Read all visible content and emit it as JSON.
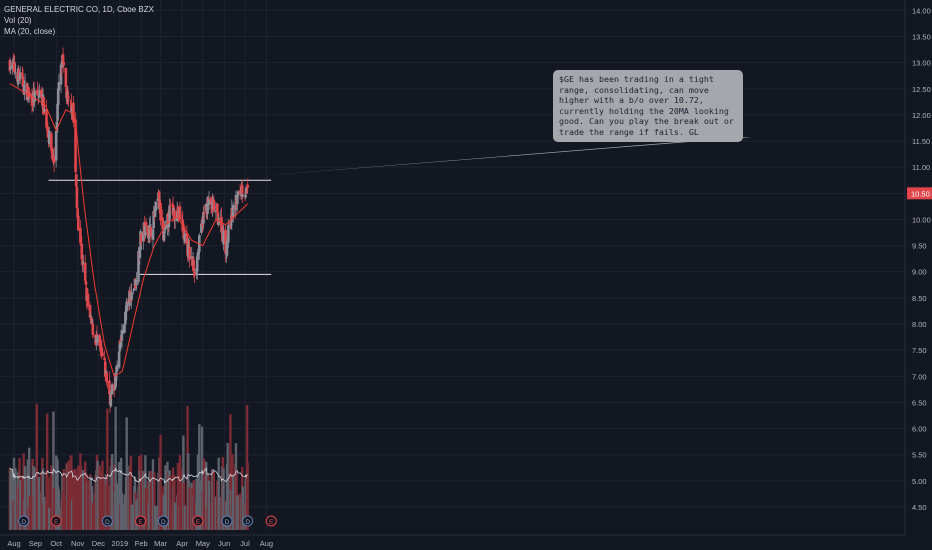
{
  "legend": {
    "title": "GENERAL ELECTRIC CO, 1D, Cboe BZX",
    "vol": "Vol (20)",
    "ma": "MA (20, close)"
  },
  "note": "$GE has been trading in a tight range, consolidating, can move higher with a b/o over 10.72, currently holding the 20MA looking good. Can you play the break out or trade the range if fails. GL",
  "colors": {
    "up": "#8c8f99",
    "down": "#e0464b",
    "vol_up": "#5d616b",
    "vol_down": "#7a2b33",
    "ma": "#f23b2f",
    "grid": "#1f2330",
    "line": "#e4e6eb"
  },
  "chart_data": {
    "type": "candlestick",
    "title": "GENERAL ELECTRIC CO, 1D, Cboe BZX",
    "price_axis": {
      "ticks": [
        "4.50",
        "5.00",
        "5.50",
        "6.00",
        "6.50",
        "7.00",
        "7.50",
        "8.00",
        "8.50",
        "9.00",
        "9.50",
        "10.00",
        "10.50",
        "11.00",
        "11.50",
        "12.00",
        "12.50",
        "13.00",
        "13.50",
        "14.00"
      ],
      "last_price": "10.50"
    },
    "time_axis": [
      "Aug",
      "Sep",
      "Oct",
      "Nov",
      "Dec",
      "2019",
      "Feb",
      "Mar",
      "Apr",
      "May",
      "Jun",
      "Jul",
      "Aug"
    ],
    "series": [
      {
        "name": "Vol (20)",
        "type": "bar"
      },
      {
        "name": "MA (20, close)",
        "type": "line"
      }
    ],
    "close_path": [
      [
        "2018-07-26",
        13.0
      ],
      [
        "2018-08-10",
        12.7
      ],
      [
        "2018-08-25",
        12.3
      ],
      [
        "2018-09-10",
        12.4
      ],
      [
        "2018-09-20",
        11.6
      ],
      [
        "2018-09-28",
        11.1
      ],
      [
        "2018-10-05",
        12.6
      ],
      [
        "2018-10-10",
        13.0
      ],
      [
        "2018-10-18",
        12.2
      ],
      [
        "2018-10-25",
        12.2
      ],
      [
        "2018-10-31",
        10.2
      ],
      [
        "2018-11-08",
        9.2
      ],
      [
        "2018-11-18",
        8.1
      ],
      [
        "2018-11-28",
        7.7
      ],
      [
        "2018-12-08",
        7.3
      ],
      [
        "2018-12-18",
        6.6
      ],
      [
        "2018-12-24",
        6.8
      ],
      [
        "2019-01-02",
        7.6
      ],
      [
        "2019-01-12",
        8.4
      ],
      [
        "2019-01-24",
        8.8
      ],
      [
        "2019-01-30",
        9.6
      ],
      [
        "2019-02-05",
        9.8
      ],
      [
        "2019-02-15",
        9.8
      ],
      [
        "2019-02-26",
        10.4
      ],
      [
        "2019-03-05",
        9.6
      ],
      [
        "2019-03-15",
        10.2
      ],
      [
        "2019-03-28",
        10.1
      ],
      [
        "2019-04-10",
        9.4
      ],
      [
        "2019-04-20",
        9.0
      ],
      [
        "2019-05-01",
        10.0
      ],
      [
        "2019-05-08",
        10.3
      ],
      [
        "2019-05-18",
        10.2
      ],
      [
        "2019-05-28",
        9.9
      ],
      [
        "2019-06-03",
        9.4
      ],
      [
        "2019-06-10",
        10.0
      ],
      [
        "2019-06-20",
        10.4
      ],
      [
        "2019-06-26",
        10.6
      ],
      [
        "2019-07-05",
        10.5
      ]
    ],
    "ma_path": [
      [
        "2018-07-26",
        12.6
      ],
      [
        "2018-08-20",
        12.4
      ],
      [
        "2018-09-15",
        12.2
      ],
      [
        "2018-10-01",
        11.7
      ],
      [
        "2018-10-15",
        12.1
      ],
      [
        "2018-10-28",
        12.0
      ],
      [
        "2018-11-10",
        10.3
      ],
      [
        "2018-11-25",
        8.8
      ],
      [
        "2018-12-10",
        7.6
      ],
      [
        "2018-12-24",
        7.0
      ],
      [
        "2019-01-05",
        7.1
      ],
      [
        "2019-01-20",
        8.0
      ],
      [
        "2019-02-05",
        8.9
      ],
      [
        "2019-02-20",
        9.5
      ],
      [
        "2019-03-08",
        9.9
      ],
      [
        "2019-03-25",
        10.05
      ],
      [
        "2019-04-15",
        9.6
      ],
      [
        "2019-05-01",
        9.5
      ],
      [
        "2019-05-20",
        10.0
      ],
      [
        "2019-06-03",
        9.9
      ],
      [
        "2019-06-15",
        10.05
      ],
      [
        "2019-07-05",
        10.3
      ]
    ],
    "levels": [
      {
        "price": 10.75,
        "from": "2018-09-20",
        "to": "2019-07-10"
      },
      {
        "price": 8.95,
        "from": "2019-01-30",
        "to": "2019-07-10"
      }
    ],
    "event_markers": [
      {
        "date": "2018-08-15",
        "label": "D"
      },
      {
        "date": "2018-10-01",
        "label": "E"
      },
      {
        "date": "2018-12-14",
        "label": "D"
      },
      {
        "date": "2019-01-31",
        "label": "E"
      },
      {
        "date": "2019-03-05",
        "label": "D"
      },
      {
        "date": "2019-04-24",
        "label": "E"
      },
      {
        "date": "2019-06-05",
        "label": "D"
      },
      {
        "date": "2019-07-05",
        "label": "D"
      },
      {
        "date": "2019-08-08",
        "label": "E"
      }
    ]
  }
}
